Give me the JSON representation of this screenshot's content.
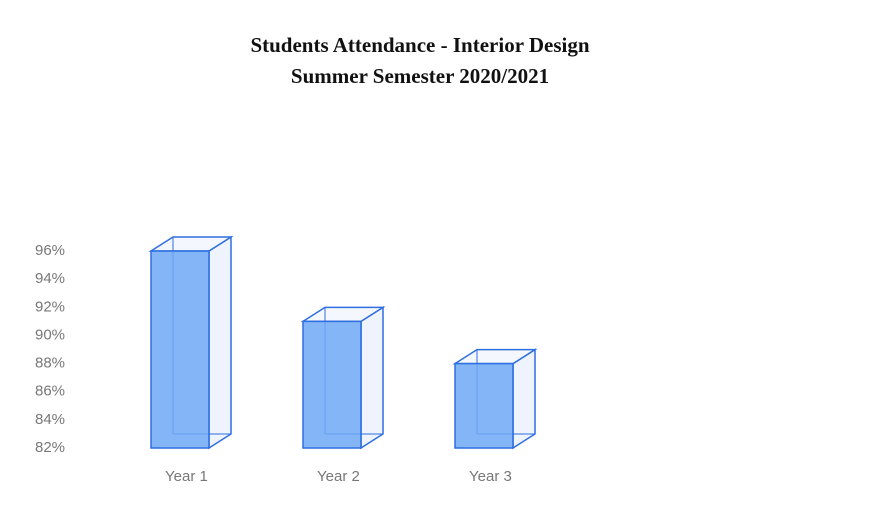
{
  "chart_data": {
    "type": "bar3d",
    "title": "Students Attendance  - Interior Design",
    "subtitle": "Summer Semester 2020/2021",
    "categories": [
      "Year 1",
      "Year 2",
      "Year 3"
    ],
    "values": [
      96,
      91,
      88
    ],
    "color": "#6fa8f5",
    "ylim": [
      82,
      97
    ],
    "yticks": [
      {
        "value": 82,
        "label": "82%"
      },
      {
        "value": 84,
        "label": "84%"
      },
      {
        "value": 86,
        "label": "86%"
      },
      {
        "value": 88,
        "label": "88%"
      },
      {
        "value": 90,
        "label": "90%"
      },
      {
        "value": 92,
        "label": "92%"
      },
      {
        "value": 94,
        "label": "94%"
      },
      {
        "value": 96,
        "label": "96%"
      }
    ],
    "grid": false
  }
}
